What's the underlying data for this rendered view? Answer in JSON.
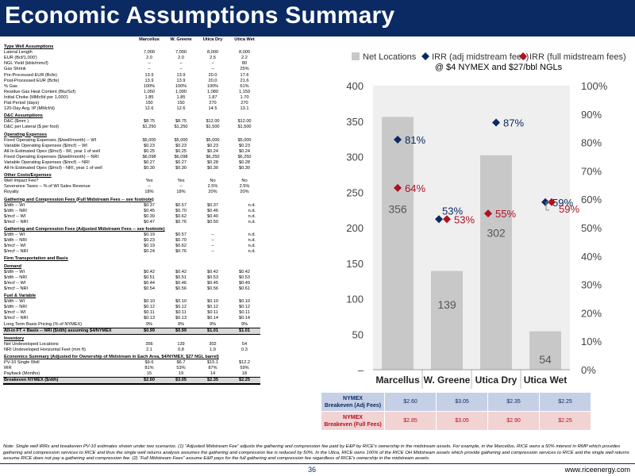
{
  "title": "Economic Assumptions Summary",
  "table": {
    "headers": [
      "",
      "Marcellus",
      "W. Greene",
      "Utica Dry",
      "Utica Wet"
    ],
    "rows": [
      {
        "k": "sec",
        "label": "Type Well Assumptions",
        "values": [
          "",
          "",
          "",
          ""
        ]
      },
      {
        "k": "row",
        "label": "Lateral Length",
        "values": [
          "7,000",
          "7,000",
          "8,000",
          "8,000"
        ]
      },
      {
        "k": "row",
        "label": "EUR (Bcf/1,000')",
        "values": [
          "2.0",
          "2.0",
          "2.5",
          "2.2"
        ]
      },
      {
        "k": "row",
        "label": "NGL Yield (bbls/mmcf)",
        "values": [
          "–",
          "–",
          "–",
          "80"
        ]
      },
      {
        "k": "row",
        "label": "Gas Shrink",
        "values": [
          "–",
          "–",
          "–",
          "25%"
        ]
      },
      {
        "k": "row",
        "label": "Pre-Processed EUR (Bcfe)",
        "values": [
          "13.9",
          "13.9",
          "20.0",
          "17.6"
        ]
      },
      {
        "k": "row",
        "label": "Post-Processed EUR (Bcfe)",
        "values": [
          "13.9",
          "13.9",
          "20.0",
          "21.6"
        ]
      },
      {
        "k": "row",
        "label": "% Gas",
        "values": [
          "100%",
          "100%",
          "100%",
          "61%"
        ]
      },
      {
        "k": "row",
        "label": "Residue Gas Heat Content (Btu/Scf)",
        "values": [
          "1,050",
          "1,090",
          "1,080",
          "1,159"
        ]
      },
      {
        "k": "row",
        "label": "Initial Choke (MMcf/d per 1,000')",
        "values": [
          "1.85",
          "1.85",
          "1.87",
          "1.70"
        ]
      },
      {
        "k": "row",
        "label": "Flat Period (days)",
        "values": [
          "150",
          "150",
          "270",
          "270"
        ]
      },
      {
        "k": "row",
        "label": "120-Day Avg. IP (MMcf/d)",
        "values": [
          "12.6",
          "12.6",
          "14.5",
          "13.1"
        ]
      },
      {
        "k": "sec",
        "label": "D&C Assumptions",
        "values": [
          "",
          "",
          "",
          ""
        ]
      },
      {
        "k": "row",
        "label": "D&C ($mm )",
        "values": [
          "$8.75",
          "$8.75",
          "$12.00",
          "$12.00"
        ]
      },
      {
        "k": "row",
        "label": "D&C per Lateral ($ per foot)",
        "values": [
          "$1,250",
          "$1,250",
          "$1,500",
          "$1,500"
        ]
      },
      {
        "k": "sec",
        "label": "Operating Expenses",
        "values": [
          "",
          "",
          "",
          ""
        ]
      },
      {
        "k": "row",
        "label": "Fixed Operating Expenses ($/well/month) -- WI",
        "values": [
          "$5,000",
          "$5,000",
          "$5,000",
          "$5,000"
        ]
      },
      {
        "k": "row",
        "label": "Variable Operating Expenses ($/mcf) -- WI",
        "values": [
          "$0.23",
          "$0.23",
          "$0.23",
          "$0.23"
        ]
      },
      {
        "k": "row",
        "label": "All-In Estimated Opex ($/mcf) - WI, year 1 of well",
        "values": [
          "$0.25",
          "$0.25",
          "$0.24",
          "$0.24"
        ]
      },
      {
        "k": "row",
        "label": "Fixed Operating Expenses ($/well/month) -- NRI",
        "values": [
          "$6,098",
          "$6,098",
          "$6,250",
          "$6,250"
        ]
      },
      {
        "k": "row",
        "label": "Variable Operating Expenses ($/mcf) -- NRI",
        "values": [
          "$0.27",
          "$0.27",
          "$0.28",
          "$0.28"
        ]
      },
      {
        "k": "row",
        "label": "All-In Estimated Opex ($/mcf) - NRI, year 1 of well",
        "values": [
          "$0.30",
          "$0.30",
          "$0.30",
          "$0.30"
        ]
      },
      {
        "k": "sec",
        "label": "Other Costs/Expenses",
        "values": [
          "",
          "",
          "",
          ""
        ]
      },
      {
        "k": "row",
        "label": "Well Impact Fee?",
        "values": [
          "Yes",
          "Yes",
          "No",
          "No"
        ]
      },
      {
        "k": "row",
        "label": "Severance Taxes -- % of WI Sales Revenue",
        "values": [
          "–",
          "–",
          "2.5%",
          "2.5%"
        ]
      },
      {
        "k": "row",
        "label": "Royalty",
        "values": [
          "18%",
          "18%",
          "20%",
          "20%"
        ]
      },
      {
        "k": "sec",
        "label": "Gathering and Compression Fees (Full Midstream Fees -- see footnote)",
        "values": [
          "",
          "",
          "",
          ""
        ]
      },
      {
        "k": "nd",
        "label": "$/dth -- WI",
        "values": [
          "$0.37",
          "$0.57",
          "$0.37",
          "n.d."
        ]
      },
      {
        "k": "nd",
        "label": "$/dth -- NRI",
        "values": [
          "$0.45",
          "$0.70",
          "$0.46",
          "n.d."
        ]
      },
      {
        "k": "nd",
        "label": "$/mcf -- WI",
        "values": [
          "$0.39",
          "$0.62",
          "$0.40",
          "n.d."
        ]
      },
      {
        "k": "nd",
        "label": "$/mcf -- NRI",
        "values": [
          "$0.47",
          "$0.76",
          "$0.50",
          "n.d."
        ]
      },
      {
        "k": "sec",
        "label": "Gathering and Compression Fees (Adjusted Midstream Fees -- see footnote)",
        "values": [
          "",
          "",
          "",
          ""
        ]
      },
      {
        "k": "nd",
        "label": "$/dth -- WI",
        "values": [
          "$0.19",
          "$0.57",
          "–",
          "n.d."
        ]
      },
      {
        "k": "nd",
        "label": "$/dth -- NRI",
        "values": [
          "$0.23",
          "$0.70",
          "–",
          "n.d."
        ]
      },
      {
        "k": "nd",
        "label": "$/mcf -- WI",
        "values": [
          "$0.19",
          "$0.62",
          "–",
          "n.d."
        ]
      },
      {
        "k": "nd",
        "label": "$/mcf -- NRI",
        "values": [
          "$0.24",
          "$0.76",
          "–",
          "n.d."
        ]
      },
      {
        "k": "sec",
        "label": "Firm Transportation and Basis",
        "values": [
          "",
          "",
          "",
          ""
        ]
      },
      {
        "k": "sec",
        "label": "Demand",
        "values": [
          "",
          "",
          "",
          ""
        ]
      },
      {
        "k": "row",
        "label": "$/dth -- WI",
        "values": [
          "$0.42",
          "$0.42",
          "$0.42",
          "$0.42"
        ]
      },
      {
        "k": "row",
        "label": "$/dth -- NRI",
        "values": [
          "$0.51",
          "$0.51",
          "$0.53",
          "$0.53"
        ]
      },
      {
        "k": "row",
        "label": "$/mcf -- WI",
        "values": [
          "$0.44",
          "$0.46",
          "$0.45",
          "$0.49"
        ]
      },
      {
        "k": "row",
        "label": "$/mcf -- NRI",
        "values": [
          "$0.54",
          "$0.56",
          "$0.56",
          "$0.61"
        ]
      },
      {
        "k": "sec",
        "label": "Fuel & Variable",
        "values": [
          "",
          "",
          "",
          ""
        ]
      },
      {
        "k": "row",
        "label": "$/dth -- WI",
        "values": [
          "$0.10",
          "$0.10",
          "$0.10",
          "$0.10"
        ]
      },
      {
        "k": "row",
        "label": "$/dth -- NRI",
        "values": [
          "$0.12",
          "$0.12",
          "$0.12",
          "$0.12"
        ]
      },
      {
        "k": "row",
        "label": "$/mcf -- WI",
        "values": [
          "$0.11",
          "$0.11",
          "$0.11",
          "$0.11"
        ]
      },
      {
        "k": "row",
        "label": "$/mcf -- NRI",
        "values": [
          "$0.13",
          "$0.13",
          "$0.14",
          "$0.14"
        ]
      },
      {
        "k": "row",
        "label": "Long Term Basis Pricing (% of NYMEX)",
        "values": [
          "9%",
          "9%",
          "9%",
          "9%"
        ]
      },
      {
        "k": "hl",
        "label": "All-in FT + Basis -- NRI ($/dth) assuming $4/NYMEX",
        "values": [
          "$0.99",
          "$0.99",
          "$1.01",
          "$1.01"
        ]
      },
      {
        "k": "sec",
        "label": "Inventory",
        "values": [
          "",
          "",
          "",
          ""
        ]
      },
      {
        "k": "row",
        "label": "Net Undeveloped Locations",
        "values": [
          "356",
          "139",
          "302",
          "54"
        ]
      },
      {
        "k": "row",
        "label": "NRI Undeveloped Horizontal Feet (mm ft)",
        "values": [
          "2.1",
          "0.8",
          "1.9",
          "0.3"
        ]
      },
      {
        "k": "sec",
        "label": "Economics Summary (Adjusted for Ownership of Midstream in Each Area, $4/NYMEX, $27 NGL barrel)",
        "values": [
          "",
          "",
          "",
          ""
        ]
      },
      {
        "k": "row",
        "label": "PV-10 Single Well",
        "values": [
          "$9.6",
          "$6.7",
          "$15.1",
          "$12.2"
        ]
      },
      {
        "k": "row",
        "label": "IRR",
        "values": [
          "81%",
          "53%",
          "87%",
          "59%"
        ]
      },
      {
        "k": "row",
        "label": "Payback (Months)",
        "values": [
          "15",
          "19",
          "14",
          "18"
        ]
      },
      {
        "k": "hl-last",
        "label": "Breakeven NYMEX ($/dth)",
        "values": [
          "$2.60",
          "$3.05",
          "$2.35",
          "$2.25"
        ]
      }
    ]
  },
  "chart_data": {
    "type": "bar",
    "title": "@ $4 NYMEX and $27/bbl NGLs",
    "legend": [
      "Net Locations",
      "IRR (adj midstream fees)",
      "IRR (full midstream fees)"
    ],
    "legend_position": "top",
    "categories": [
      "Marcellus",
      "W. Greene",
      "Utica Dry",
      "Utica Wet"
    ],
    "series": [
      {
        "name": "Net Locations",
        "kind": "bar",
        "axis": "left",
        "values": [
          356,
          139,
          302,
          54
        ],
        "labels": [
          "356",
          "139",
          "302",
          "54"
        ]
      },
      {
        "name": "IRR (adj midstream fees)",
        "kind": "diamond",
        "axis": "right",
        "values": [
          0.81,
          0.53,
          0.87,
          0.59
        ],
        "labels": [
          "81%",
          "53%",
          "87%",
          "59%"
        ]
      },
      {
        "name": "IRR (full midstream fees)",
        "kind": "diamond",
        "axis": "right",
        "values": [
          0.64,
          0.53,
          0.55,
          0.59
        ],
        "labels": [
          "64%",
          "53%",
          "55%",
          "59%"
        ]
      }
    ],
    "y_left": {
      "min": 0,
      "max": 400,
      "ticks": [
        "–",
        "50",
        "100",
        "150",
        "200",
        "250",
        "300",
        "350",
        "400"
      ]
    },
    "y_right": {
      "min": 0,
      "max": 1,
      "ticks": [
        "0%",
        "10%",
        "20%",
        "30%",
        "40%",
        "50%",
        "60%",
        "70%",
        "80%",
        "90%",
        "100%"
      ]
    },
    "colors": {
      "bar": "#c8c8c8",
      "adj": "#0b2a63",
      "full": "#b01020",
      "plot_bg": "#efefef"
    }
  },
  "breakeven": {
    "rows": [
      {
        "label_line1": "NYMEX",
        "label_line2": "Breakeven (Adj Fees)",
        "values": [
          "$2.60",
          "$3.05",
          "$2.35",
          "$2.25"
        ]
      },
      {
        "label_line1": "NYMEX",
        "label_line2": "Breakeven (Full Fees)",
        "values": [
          "$2.85",
          "$3.05",
          "$2.90",
          "$2.25"
        ]
      }
    ]
  },
  "note": "Note: Single well IRRs and breakeven PV-10 estimates shown under two scenarios. (1) “Adjusted Midstream Fee” adjusts the gathering and compression fee paid by E&P by RICE's ownership in the midstream assets. For example, in the Marcellus, RICE owns a 50% interest in RMP which provides gathering and compression services to RICE and thus the single well returns analysis assumes the gathering and compression fee is reduced by 50%. In the Utica, RICE owns 100% of the RICE OH Midstream assets which provide gathering and compression services to RICE and the single well returns assume RICE does not pay a gathering and compression fee. (2) “Full Midstream Fees” assume E&P pays for the full gathering and compression fee regardless of RICE's ownership in the midstream assets.",
  "page_number": "36",
  "website": "www.riceenergy.com"
}
